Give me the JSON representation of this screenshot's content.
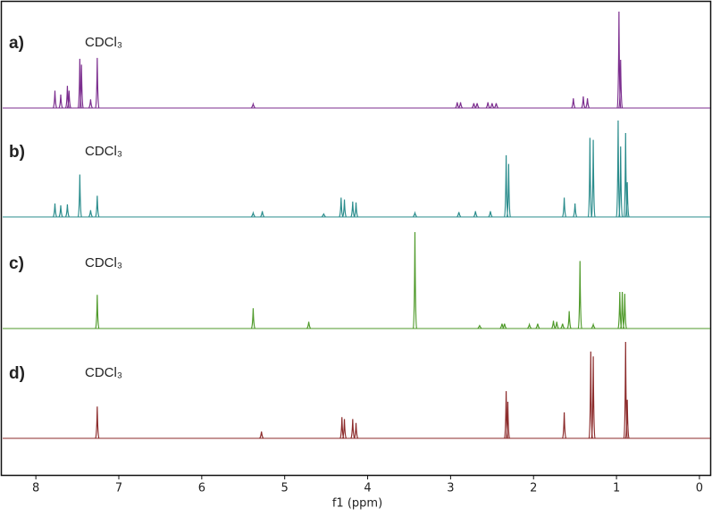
{
  "chart_data": {
    "type": "spectrum",
    "x_label": "f1 (ppm)",
    "xlim": [
      8.4,
      -0.13
    ],
    "xticks": [
      8,
      7,
      6,
      5,
      4,
      3,
      2,
      1,
      0
    ],
    "ylim": [
      0,
      100
    ],
    "series": [
      {
        "name": "a)",
        "annotation": "CDCl₃",
        "color": "#7b2d8e",
        "x": [
          7.77,
          7.7,
          7.62,
          7.6,
          7.47,
          7.45,
          7.34,
          7.26,
          5.38,
          2.92,
          2.88,
          2.72,
          2.68,
          2.55,
          2.5,
          2.45,
          1.52,
          1.4,
          1.35,
          0.97,
          0.95
        ],
        "values": [
          18,
          14,
          23,
          18,
          51,
          45,
          9,
          52,
          4,
          6,
          6,
          5,
          5,
          6,
          5,
          5,
          10,
          12,
          10,
          100,
          50
        ]
      },
      {
        "name": "b)",
        "annotation": "CDCl₃",
        "color": "#2a8c8c",
        "x": [
          7.77,
          7.7,
          7.62,
          7.47,
          7.34,
          7.26,
          5.38,
          5.27,
          4.53,
          4.32,
          4.28,
          4.18,
          4.14,
          3.43,
          2.9,
          2.7,
          2.52,
          2.33,
          2.3,
          1.63,
          1.5,
          1.32,
          1.28,
          0.98,
          0.95,
          0.89,
          0.87
        ],
        "values": [
          14,
          12,
          13,
          44,
          7,
          22,
          4,
          6,
          3,
          20,
          18,
          16,
          15,
          4,
          5,
          6,
          6,
          64,
          55,
          20,
          14,
          82,
          80,
          100,
          73,
          87,
          36
        ]
      },
      {
        "name": "c)",
        "annotation": "CDCl₃",
        "color": "#4f9a2a",
        "x": [
          7.26,
          5.38,
          4.71,
          3.43,
          2.65,
          2.38,
          2.35,
          2.05,
          1.95,
          1.76,
          1.72,
          1.65,
          1.57,
          1.44,
          1.28,
          0.96,
          0.93,
          0.9
        ],
        "values": [
          35,
          21,
          7,
          100,
          3,
          5,
          5,
          4,
          5,
          8,
          7,
          5,
          18,
          70,
          4,
          38,
          38,
          36
        ]
      },
      {
        "name": "d)",
        "annotation": "CDCl₃",
        "color": "#8b2a2a",
        "x": [
          7.26,
          5.28,
          4.31,
          4.28,
          4.18,
          4.14,
          2.33,
          2.31,
          1.63,
          1.31,
          1.28,
          0.89,
          0.87
        ],
        "values": [
          33,
          7,
          22,
          20,
          20,
          16,
          49,
          38,
          27,
          90,
          85,
          100,
          40
        ]
      }
    ]
  }
}
